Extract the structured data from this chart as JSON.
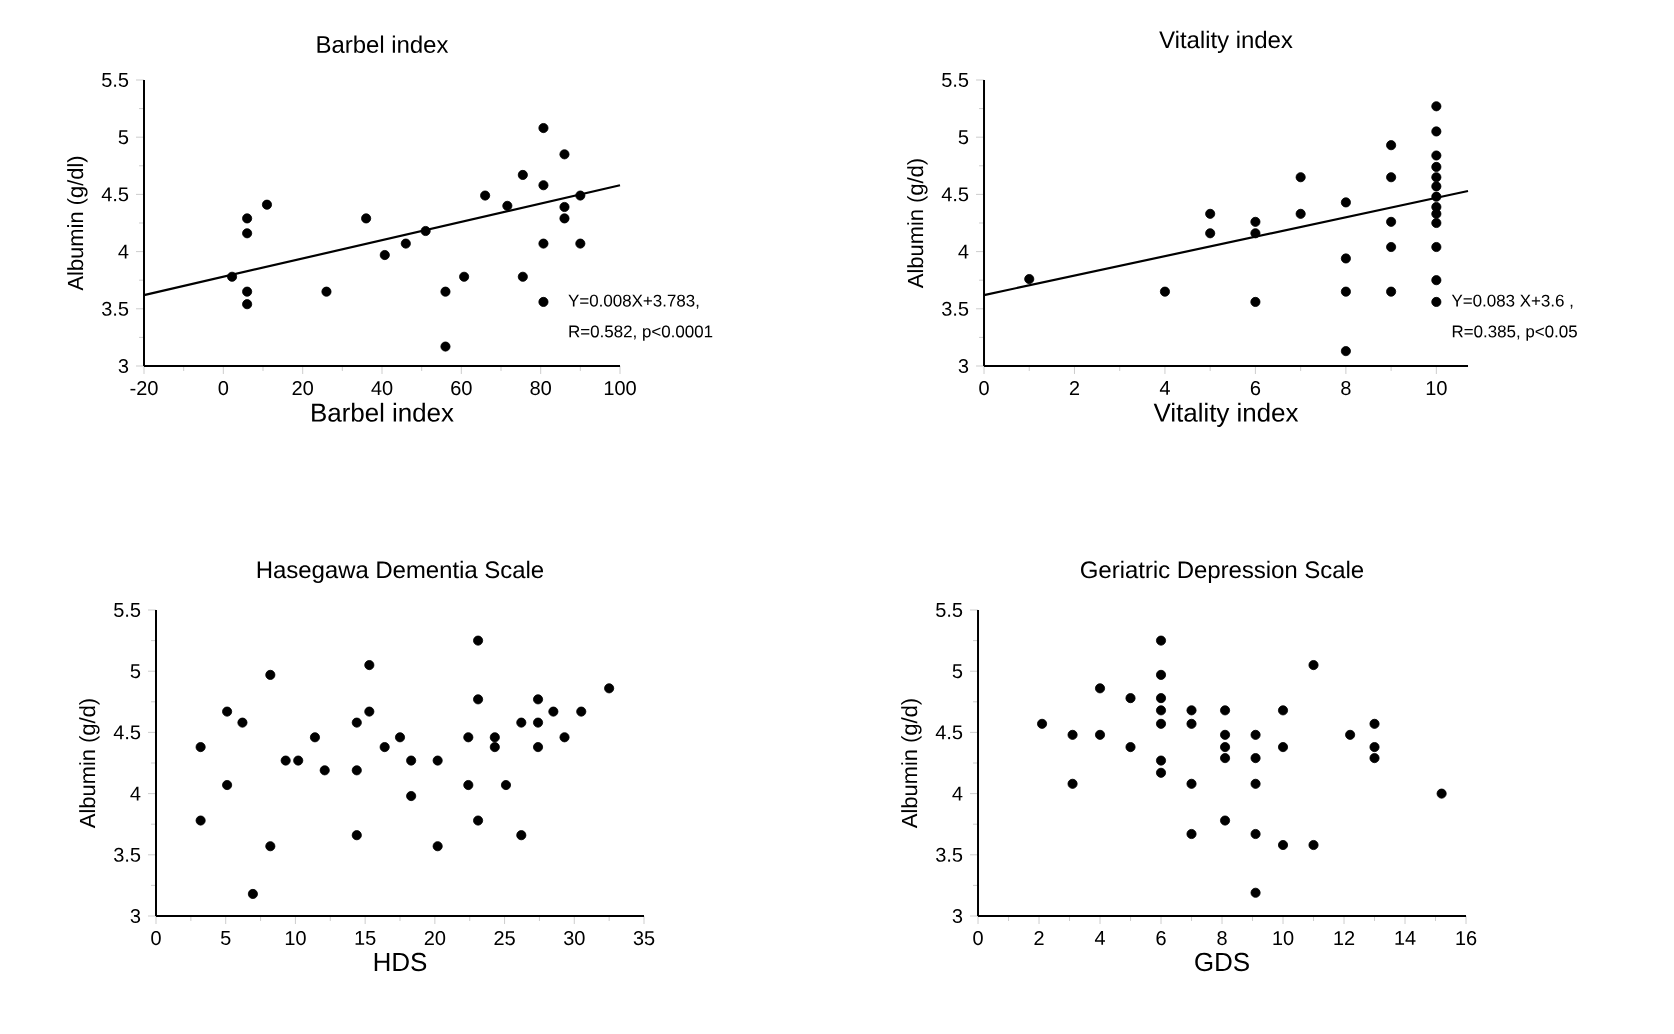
{
  "chart_data": [
    {
      "type": "scatter",
      "title": "Barbel index",
      "xlabel": "Barbel index",
      "ylabel": "Albumin (g/dl)",
      "xlim": [
        -20,
        100
      ],
      "ylim": [
        3,
        5.5
      ],
      "xticks": [
        -20,
        0,
        20,
        40,
        60,
        80,
        100
      ],
      "yticks": [
        3,
        3.5,
        4,
        4.5,
        5,
        5.5
      ],
      "grid": false,
      "annotations": [
        "Y=0.008X+3.783,",
        "R=0.582, p<0.0001"
      ],
      "series": [
        {
          "marker": "circle",
          "color": "#000000",
          "x": [
            2.2,
            6,
            6,
            6,
            6,
            11,
            26,
            36,
            40.7,
            46,
            51,
            56,
            56,
            60.7,
            66,
            71.6,
            75.5,
            75.5,
            80.7,
            80.7,
            80.7,
            80.7,
            86,
            86,
            86,
            90,
            90
          ],
          "values": [
            3.78,
            4.29,
            4.16,
            3.65,
            3.54,
            4.41,
            3.65,
            4.29,
            3.97,
            4.07,
            4.18,
            3.65,
            3.17,
            3.78,
            4.49,
            4.4,
            4.67,
            3.78,
            5.08,
            4.58,
            4.07,
            3.56,
            4.85,
            4.39,
            4.29,
            4.49,
            4.07
          ]
        },
        {
          "type": "line",
          "marker": "none",
          "color": "#000000",
          "x": [
            -20,
            100
          ],
          "values": [
            3.62,
            4.58
          ]
        }
      ]
    },
    {
      "type": "scatter",
      "title": "Vitality index",
      "xlabel": "Vitality index",
      "ylabel": "Albumin (g/d)",
      "xlim": [
        0,
        10.7
      ],
      "ylim": [
        3,
        5.5
      ],
      "xticks": [
        0,
        2,
        4,
        6,
        8,
        10
      ],
      "yticks": [
        3,
        3.5,
        4,
        4.5,
        5,
        5.5
      ],
      "grid": false,
      "annotations": [
        "Y=0.083 X+3.6 ,",
        "R=0.385, p<0.05"
      ],
      "series": [
        {
          "marker": "circle",
          "color": "#000000",
          "x": [
            1,
            4,
            5,
            5,
            6,
            6,
            6,
            7,
            7,
            8,
            8,
            8,
            8,
            9,
            9,
            9,
            9,
            9,
            10,
            10,
            10,
            10,
            10,
            10,
            10,
            10,
            10,
            10,
            10,
            10,
            10
          ],
          "values": [
            3.76,
            3.65,
            4.33,
            4.16,
            4.26,
            4.16,
            3.56,
            4.65,
            4.33,
            4.43,
            3.94,
            3.65,
            3.13,
            4.93,
            4.65,
            4.26,
            4.04,
            3.65,
            5.27,
            5.05,
            4.84,
            4.74,
            4.65,
            4.57,
            4.48,
            4.39,
            4.33,
            4.25,
            4.04,
            3.75,
            3.56
          ]
        },
        {
          "type": "line",
          "marker": "none",
          "color": "#000000",
          "x": [
            0,
            10.7
          ],
          "values": [
            3.62,
            4.53
          ]
        }
      ]
    },
    {
      "type": "scatter",
      "title": "Hasegawa Dementia Scale",
      "xlabel": "HDS",
      "ylabel": "Albumin (g/d)",
      "xlim": [
        0,
        35
      ],
      "ylim": [
        3,
        5.5
      ],
      "xticks": [
        0,
        5,
        10,
        15,
        20,
        25,
        30,
        35
      ],
      "yticks": [
        3,
        3.5,
        4,
        4.5,
        5,
        5.5
      ],
      "grid": false,
      "series": [
        {
          "marker": "circle",
          "color": "#000000",
          "x": [
            3.2,
            3.2,
            5.1,
            5.1,
            6.2,
            6.95,
            8.2,
            8.2,
            9.3,
            10.2,
            11.4,
            12.1,
            14.4,
            14.4,
            14.4,
            15.3,
            15.3,
            16.4,
            17.5,
            18.3,
            18.3,
            20.2,
            20.2,
            22.4,
            22.4,
            23.1,
            23.1,
            23.1,
            24.3,
            24.3,
            25.1,
            26.2,
            26.2,
            27.4,
            27.4,
            27.4,
            28.5,
            29.3,
            30.5,
            32.5
          ],
          "values": [
            4.38,
            3.78,
            4.07,
            4.67,
            4.58,
            3.18,
            4.97,
            3.57,
            4.27,
            4.27,
            4.46,
            4.19,
            4.58,
            4.19,
            3.66,
            5.05,
            4.67,
            4.38,
            4.46,
            4.27,
            3.98,
            4.27,
            3.57,
            4.46,
            4.07,
            5.25,
            4.77,
            3.78,
            4.46,
            4.38,
            4.07,
            4.58,
            3.66,
            4.77,
            4.58,
            4.38,
            4.67,
            4.46,
            4.67,
            4.86
          ]
        }
      ]
    },
    {
      "type": "scatter",
      "title": "Geriatric Depression Scale",
      "xlabel": "GDS",
      "ylabel": "Albumin (g/d)",
      "xlim": [
        0,
        16
      ],
      "ylim": [
        3,
        5.5
      ],
      "xticks": [
        0,
        2,
        4,
        6,
        8,
        10,
        12,
        14,
        16
      ],
      "yticks": [
        3,
        3.5,
        4,
        4.5,
        5,
        5.5
      ],
      "grid": false,
      "series": [
        {
          "marker": "circle",
          "color": "#000000",
          "x": [
            2.1,
            3.1,
            3.1,
            4,
            4,
            5,
            5,
            6,
            6,
            6,
            6,
            6,
            6,
            6,
            7,
            7,
            7,
            7,
            8.1,
            8.1,
            8.1,
            8.1,
            8.1,
            9.1,
            9.1,
            9.1,
            9.1,
            9.1,
            10,
            10,
            10,
            11,
            11,
            12.2,
            13,
            13,
            13,
            15.2
          ],
          "values": [
            4.57,
            4.48,
            4.08,
            4.86,
            4.48,
            4.78,
            4.38,
            5.25,
            4.97,
            4.78,
            4.68,
            4.57,
            4.27,
            4.17,
            4.68,
            4.57,
            4.08,
            3.67,
            4.68,
            4.48,
            4.38,
            4.29,
            3.78,
            4.48,
            4.29,
            4.08,
            3.67,
            3.19,
            4.68,
            4.38,
            3.58,
            5.05,
            3.58,
            4.48,
            4.57,
            4.38,
            4.29,
            4.0
          ]
        }
      ]
    }
  ]
}
